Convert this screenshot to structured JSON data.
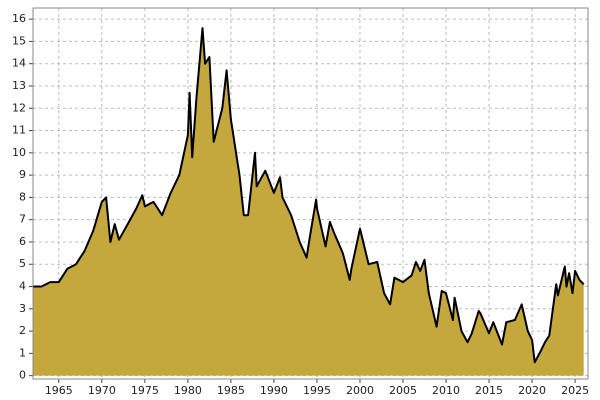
{
  "chart_data": {
    "type": "area",
    "x": [
      1962,
      1963,
      1964,
      1965,
      1966,
      1967,
      1968,
      1969,
      1970,
      1970.5,
      1971,
      1971.5,
      1972,
      1973,
      1974,
      1974.7,
      1975,
      1976,
      1977,
      1978,
      1979,
      1980,
      1980.2,
      1980.5,
      1981,
      1981.7,
      1982,
      1982.5,
      1983,
      1984,
      1984.5,
      1985,
      1986,
      1986.5,
      1987,
      1987.8,
      1988,
      1989,
      1990,
      1990.7,
      1991,
      1992,
      1993,
      1993.8,
      1994,
      1994.9,
      1995,
      1996,
      1996.5,
      1997,
      1998,
      1998.8,
      1999,
      2000,
      2001,
      2002,
      2002.8,
      2003.5,
      2004,
      2005,
      2006,
      2006.5,
      2007,
      2007.5,
      2008,
      2008.9,
      2009.5,
      2010,
      2010.8,
      2011,
      2011.8,
      2012.5,
      2013,
      2013.8,
      2014,
      2015,
      2015.5,
      2016.5,
      2017,
      2018,
      2018.8,
      2019.5,
      2020,
      2020.3,
      2021,
      2021.5,
      2022,
      2022.8,
      2023,
      2023.8,
      2024,
      2024.3,
      2024.7,
      2025,
      2025.5,
      2026
    ],
    "values": [
      4.0,
      4.0,
      4.2,
      4.2,
      4.8,
      5.0,
      5.6,
      6.5,
      7.8,
      8.0,
      6.0,
      6.8,
      6.1,
      6.8,
      7.5,
      8.1,
      7.6,
      7.8,
      7.2,
      8.2,
      9.0,
      10.8,
      12.7,
      9.8,
      12.5,
      15.6,
      14.0,
      14.3,
      10.5,
      12.0,
      13.7,
      11.5,
      9.0,
      7.2,
      7.2,
      10.0,
      8.5,
      9.2,
      8.2,
      8.9,
      8.0,
      7.2,
      6.0,
      5.3,
      5.8,
      7.9,
      7.5,
      5.8,
      6.9,
      6.4,
      5.5,
      4.3,
      4.8,
      6.6,
      5.0,
      5.1,
      3.7,
      3.2,
      4.4,
      4.2,
      4.5,
      5.1,
      4.7,
      5.2,
      3.7,
      2.2,
      3.8,
      3.7,
      2.5,
      3.5,
      2.0,
      1.5,
      1.9,
      2.9,
      2.8,
      1.9,
      2.4,
      1.4,
      2.4,
      2.5,
      3.2,
      2.0,
      1.6,
      0.6,
      1.1,
      1.5,
      1.8,
      4.1,
      3.6,
      4.9,
      4.0,
      4.6,
      3.7,
      4.7,
      4.3,
      4.1
    ],
    "color": "#c4a83c",
    "line_color": "#000000",
    "xlim": [
      1962,
      2026.5
    ],
    "ylim": [
      -0.15,
      16.5
    ],
    "xticks": [
      1965,
      1970,
      1975,
      1980,
      1985,
      1990,
      1995,
      2000,
      2005,
      2010,
      2015,
      2020,
      2025
    ],
    "yticks": [
      0,
      1,
      2,
      3,
      4,
      5,
      6,
      7,
      8,
      9,
      10,
      11,
      12,
      13,
      14,
      15,
      16
    ],
    "grid": true
  }
}
